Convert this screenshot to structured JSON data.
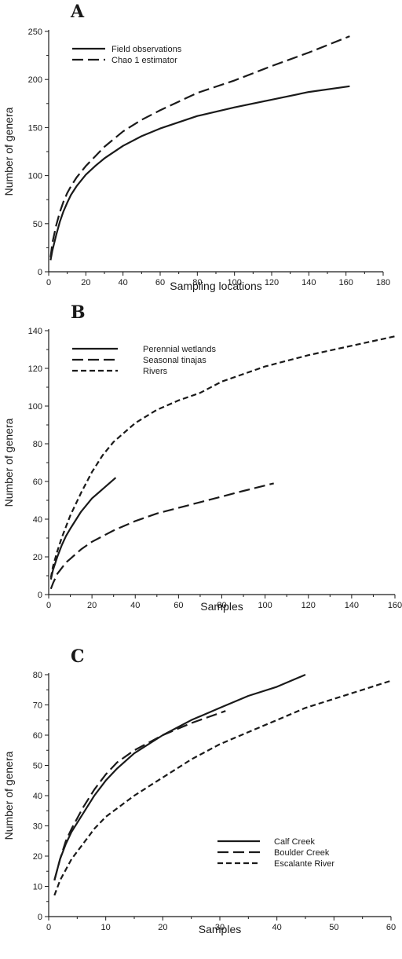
{
  "chart_data": [
    {
      "panel": "A",
      "type": "line",
      "xlabel": "Sampling locations",
      "ylabel": "Number of genera",
      "xlim": [
        0,
        180
      ],
      "ylim": [
        0,
        250
      ],
      "xticks": [
        0,
        20,
        40,
        60,
        80,
        100,
        120,
        140,
        160,
        180
      ],
      "yticks": [
        0,
        50,
        100,
        150,
        200,
        250
      ],
      "legend_position": "top-left",
      "series": [
        {
          "name": "Field observations",
          "style": "solid",
          "x": [
            1,
            2,
            4,
            6,
            8,
            10,
            12,
            15,
            20,
            25,
            30,
            40,
            50,
            60,
            80,
            100,
            120,
            140,
            162
          ],
          "y": [
            12,
            22,
            38,
            52,
            63,
            72,
            80,
            89,
            101,
            110,
            118,
            131,
            141,
            149,
            162,
            171,
            179,
            187,
            193
          ]
        },
        {
          "name": "Chao 1 estimator",
          "style": "long-dash",
          "x": [
            1,
            2,
            4,
            6,
            8,
            10,
            12,
            15,
            20,
            25,
            30,
            40,
            50,
            60,
            80,
            100,
            120,
            140,
            162
          ],
          "y": [
            15,
            30,
            48,
            62,
            73,
            82,
            89,
            98,
            110,
            120,
            130,
            146,
            158,
            168,
            186,
            199,
            214,
            228,
            245
          ]
        }
      ]
    },
    {
      "panel": "B",
      "type": "line",
      "xlabel": "Samples",
      "ylabel": "Number of genera",
      "xlim": [
        0,
        160
      ],
      "ylim": [
        0,
        140
      ],
      "xticks": [
        0,
        20,
        40,
        60,
        80,
        100,
        120,
        140,
        160
      ],
      "yticks": [
        0,
        20,
        40,
        60,
        80,
        100,
        120,
        140
      ],
      "legend_position": "top-left",
      "series": [
        {
          "name": "Perennial wetlands",
          "style": "solid",
          "x": [
            1,
            2,
            4,
            6,
            8,
            10,
            15,
            20,
            25,
            31
          ],
          "y": [
            8,
            13,
            20,
            26,
            31,
            35,
            44,
            51,
            56,
            62
          ]
        },
        {
          "name": "Seasonal tinajas",
          "style": "long-dash",
          "x": [
            1,
            2,
            4,
            6,
            8,
            10,
            15,
            20,
            30,
            40,
            50,
            60,
            70,
            80,
            90,
            104
          ],
          "y": [
            3,
            6,
            11,
            14,
            17,
            19,
            24,
            28,
            34,
            39,
            43,
            46,
            49,
            52,
            55,
            59
          ]
        },
        {
          "name": "Rivers",
          "style": "short-dash",
          "x": [
            1,
            2,
            4,
            6,
            8,
            10,
            15,
            20,
            25,
            30,
            40,
            50,
            60,
            70,
            80,
            90,
            100,
            120,
            140,
            160
          ],
          "y": [
            9,
            15,
            23,
            30,
            36,
            42,
            54,
            65,
            74,
            81,
            91,
            98,
            103,
            107,
            113,
            117,
            121,
            127,
            132,
            137
          ]
        }
      ]
    },
    {
      "panel": "C",
      "type": "line",
      "xlabel": "Samples",
      "ylabel": "Number of genera",
      "xlim": [
        0,
        60
      ],
      "ylim": [
        0,
        80
      ],
      "xticks": [
        0,
        10,
        20,
        30,
        40,
        50,
        60
      ],
      "yticks": [
        0,
        10,
        20,
        30,
        40,
        50,
        60,
        70,
        80
      ],
      "legend_position": "bottom-right",
      "series": [
        {
          "name": "Calf Creek",
          "style": "solid",
          "x": [
            1,
            2,
            3,
            4,
            6,
            8,
            10,
            12,
            15,
            20,
            25,
            30,
            35,
            40,
            45
          ],
          "y": [
            12,
            19,
            24,
            28,
            34,
            40,
            45,
            49,
            54,
            60,
            65,
            69,
            73,
            76,
            80
          ]
        },
        {
          "name": "Boulder Creek",
          "style": "long-dash",
          "x": [
            1,
            2,
            3,
            4,
            6,
            8,
            10,
            12,
            15,
            18,
            20,
            25,
            28,
            31
          ],
          "y": [
            12,
            19,
            25,
            29,
            36,
            42,
            47,
            51,
            55,
            58,
            60,
            64,
            66,
            68
          ]
        },
        {
          "name": "Escalante River",
          "style": "short-dash",
          "x": [
            1,
            2,
            4,
            6,
            8,
            10,
            15,
            20,
            25,
            30,
            35,
            40,
            45,
            50,
            55,
            60
          ],
          "y": [
            7,
            12,
            19,
            24,
            29,
            33,
            40,
            46,
            52,
            57,
            61,
            65,
            69,
            72,
            75,
            78
          ]
        }
      ]
    }
  ]
}
